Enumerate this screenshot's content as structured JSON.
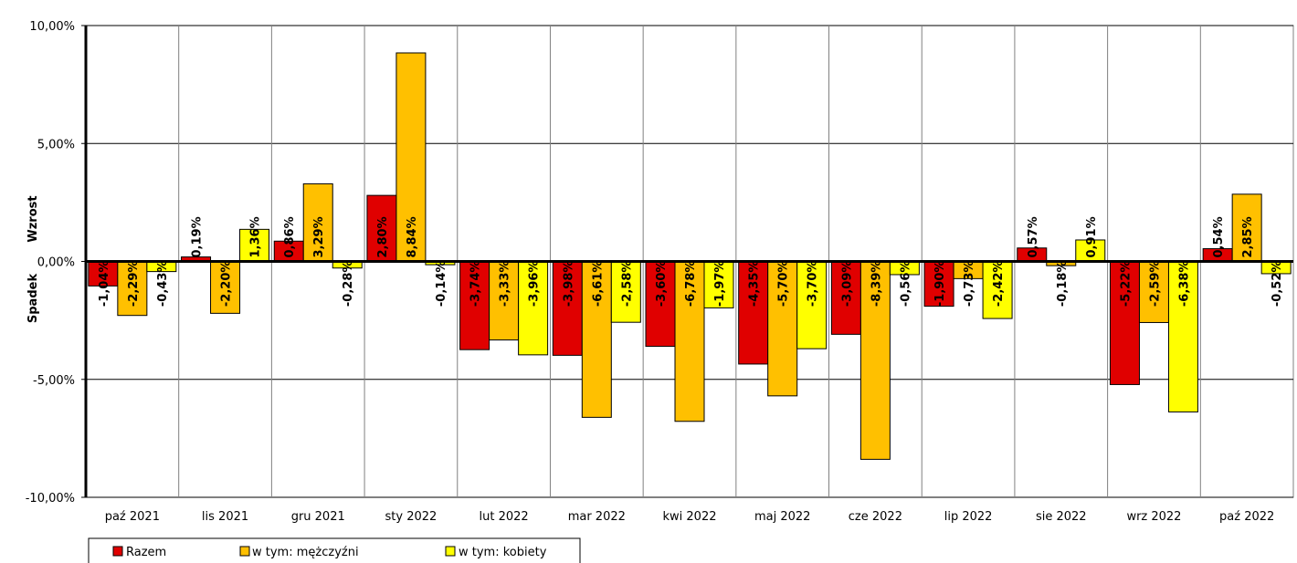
{
  "chart_data": {
    "type": "bar",
    "categories": [
      "paź 2021",
      "lis 2021",
      "gru 2021",
      "sty 2022",
      "lut 2022",
      "mar 2022",
      "kwi 2022",
      "maj 2022",
      "cze 2022",
      "lip 2022",
      "sie 2022",
      "wrz 2022",
      "paź 2022"
    ],
    "series": [
      {
        "name": "Razem",
        "color": "#e00000",
        "values": [
          -1.04,
          0.19,
          0.86,
          2.8,
          -3.74,
          -3.98,
          -3.6,
          -4.35,
          -3.09,
          -1.9,
          0.57,
          -5.22,
          0.54
        ],
        "labels": [
          "-1,04%",
          "0,19%",
          "0,86%",
          "2,80%",
          "-3,74%",
          "-3,98%",
          "-3,60%",
          "-4,35%",
          "-3,09%",
          "-1,90%",
          "0,57%",
          "-5,22%",
          "0,54%"
        ]
      },
      {
        "name": "w tym: mężczyźni",
        "color": "#ffc000",
        "values": [
          -2.29,
          null,
          3.29,
          8.84,
          -3.33,
          -6.61,
          -6.78,
          -5.7,
          -8.39,
          -0.73,
          -0.18,
          -2.59,
          2.85
        ],
        "labels": [
          "-2,29%",
          "-2,20%",
          "3,29%",
          "8,84%",
          "-3,33%",
          "-6,61%",
          "-6,78%",
          "-5,70%",
          "-8,39%",
          "-0,73%",
          "-0,18%",
          "-2,59%",
          "2,85%"
        ],
        "bar_value_for_lis_2021": -2.2
      },
      {
        "name": "w tym: kobiety",
        "color": "#ffff00",
        "values": [
          -0.43,
          1.36,
          -0.28,
          -0.14,
          -3.96,
          -2.58,
          -1.97,
          -3.7,
          -0.56,
          -2.42,
          0.91,
          -6.38,
          -0.52
        ],
        "labels": [
          "-0,43%",
          "1,36%",
          "-0,28%",
          "-0,14%",
          "-3,96%",
          "-2,58%",
          "-1,97%",
          "-3,70%",
          "-0,56%",
          "-2,42%",
          "0,91%",
          "-6,38%",
          "-0,52%"
        ]
      }
    ],
    "yticks": [
      -10,
      -5,
      0,
      5,
      10
    ],
    "ytick_labels": [
      "-10,00%",
      "-5,00%",
      "0,00%",
      "5,00%",
      "10,00%"
    ],
    "ylim": [
      -10,
      10
    ],
    "ylabel_top": "Wzrost",
    "ylabel_bottom": "Spadek",
    "grid": true,
    "legend_position": "bottom-left"
  }
}
